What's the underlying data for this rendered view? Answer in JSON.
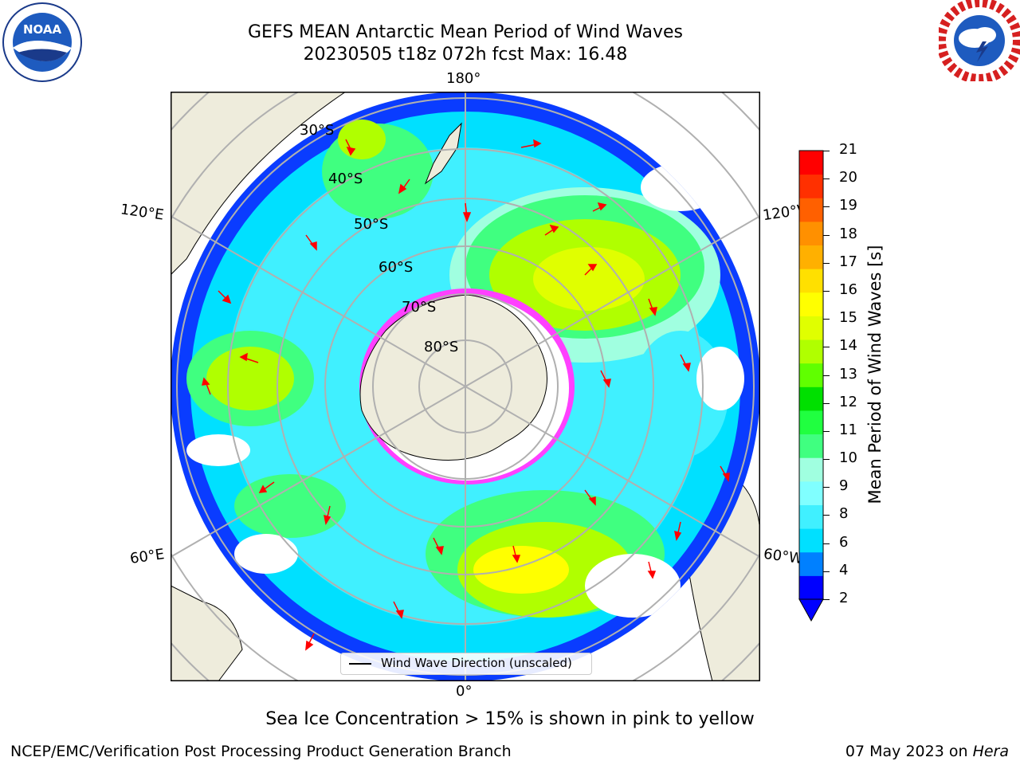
{
  "header": {
    "title_line1": "GEFS MEAN Antarctic Mean Period of Wind Waves",
    "title_line2": "20230505 t18z 072h fcst   Max: 16.48"
  },
  "logos": {
    "left": {
      "text": "NOAA",
      "ring": "NATIONAL OCEANIC AND ATMOSPHERIC ADMINISTRATION · U.S. DEPARTMENT OF COMMERCE"
    },
    "right": {
      "ring": "NATIONAL WEATHER SERVICE"
    }
  },
  "map": {
    "longitude_labels": {
      "top": "180°",
      "bottom": "0°",
      "left_upper": "120°E",
      "left_lower": "60°E",
      "right_upper": "120°W",
      "right_lower": "60°W"
    },
    "latitude_labels": [
      "30°S",
      "40°S",
      "50°S",
      "60°S",
      "70°S",
      "80°S"
    ],
    "legend_label": "Wind Wave Direction (unscaled)",
    "colors": {
      "land": "#eeecdc",
      "ice": "#ff40ff",
      "arrow": "#ff0000",
      "grid": "#b0b0b0"
    }
  },
  "colorbar": {
    "title": "Mean Period of Wind Waves [s]",
    "ticks": [
      "21",
      "20",
      "19",
      "18",
      "17",
      "16",
      "15",
      "14",
      "13",
      "12",
      "11",
      "10",
      "9",
      "8",
      "6",
      "4",
      "2"
    ],
    "colors": [
      "#0000ff",
      "#0080ff",
      "#00e0ff",
      "#40f0ff",
      "#80ffff",
      "#a0ffe0",
      "#40ff80",
      "#20ff40",
      "#00e000",
      "#60ff00",
      "#b0ff00",
      "#e0ff00",
      "#ffff00",
      "#ffe000",
      "#ffb000",
      "#ff9000",
      "#ff6000",
      "#ff3000",
      "#ff0000"
    ]
  },
  "caption": "Sea Ice Concentration > 15% is shown in pink to yellow",
  "footer": {
    "left": "NCEP/EMC/Verification Post Processing Product Generation Branch",
    "right_date": "07 May 2023 on ",
    "right_host": "Hera"
  }
}
